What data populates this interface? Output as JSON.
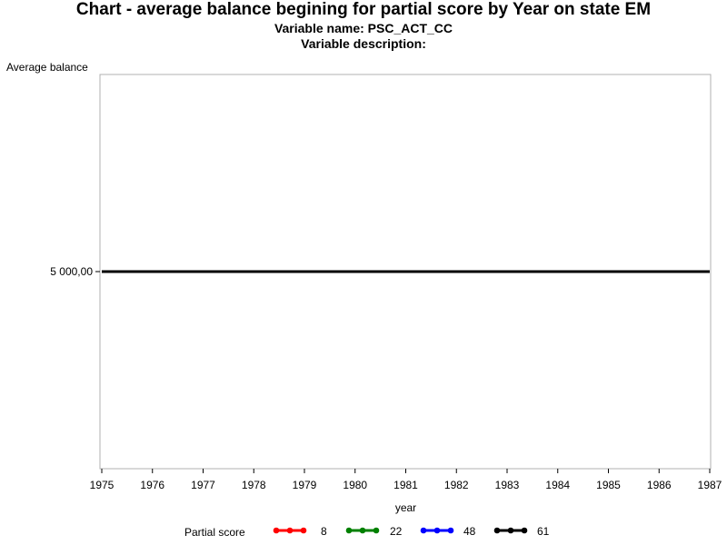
{
  "header": {
    "title": "Chart - average balance begining for partial score by Year on state EM",
    "variable_name": "Variable name: PSC_ACT_CC",
    "variable_description": "Variable description:"
  },
  "legend": {
    "title": "Partial score",
    "items": [
      {
        "label": "8",
        "color": "#ff0000"
      },
      {
        "label": "22",
        "color": "#008000"
      },
      {
        "label": "48",
        "color": "#0000ff"
      },
      {
        "label": "61",
        "color": "#000000"
      }
    ]
  },
  "chart_data": {
    "type": "line",
    "xlabel": "year",
    "ylabel": "Average balance",
    "x_ticks": [
      "1975",
      "1976",
      "1977",
      "1978",
      "1979",
      "1980",
      "1981",
      "1982",
      "1983",
      "1984",
      "1985",
      "1986",
      "1987"
    ],
    "y_ticks": [
      {
        "value": 5000,
        "label": "5 000,00"
      }
    ],
    "xlim": [
      1975,
      1987
    ],
    "ylim": [
      4000,
      6000
    ],
    "grid": false,
    "legend_position": "bottom",
    "series": [
      {
        "name": "61",
        "color": "#000000",
        "x": [
          1975,
          1987
        ],
        "y": [
          5000,
          5000
        ]
      }
    ]
  }
}
